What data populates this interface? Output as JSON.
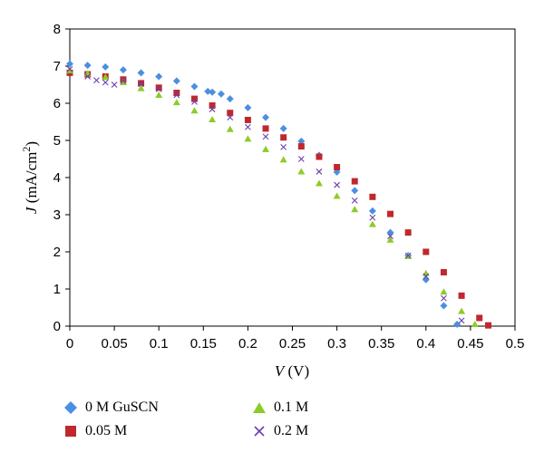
{
  "chart_data": {
    "type": "scatter",
    "xlabel": "V (V)",
    "ylabel": "J (mA/cm2)",
    "xlim": [
      0,
      0.5
    ],
    "ylim": [
      0,
      8
    ],
    "xticks": [
      "0",
      "0.05",
      "0.1",
      "0.15",
      "0.2",
      "0.25",
      "0.3",
      "0.35",
      "0.4",
      "0.45",
      "0.5"
    ],
    "yticks": [
      "0",
      "1",
      "2",
      "3",
      "4",
      "5",
      "6",
      "7",
      "8"
    ],
    "grid": false,
    "legend_position": "bottom",
    "series": [
      {
        "name": "0 M GuSCN",
        "marker": "diamond",
        "color": "#4a90e2",
        "points": [
          [
            0.0,
            7.06
          ],
          [
            0.02,
            7.02
          ],
          [
            0.04,
            6.98
          ],
          [
            0.06,
            6.9
          ],
          [
            0.08,
            6.82
          ],
          [
            0.1,
            6.72
          ],
          [
            0.12,
            6.6
          ],
          [
            0.14,
            6.45
          ],
          [
            0.155,
            6.32
          ],
          [
            0.16,
            6.3
          ],
          [
            0.17,
            6.25
          ],
          [
            0.18,
            6.12
          ],
          [
            0.2,
            5.88
          ],
          [
            0.22,
            5.62
          ],
          [
            0.24,
            5.32
          ],
          [
            0.26,
            4.98
          ],
          [
            0.28,
            4.6
          ],
          [
            0.3,
            4.15
          ],
          [
            0.32,
            3.65
          ],
          [
            0.34,
            3.1
          ],
          [
            0.36,
            2.52
          ],
          [
            0.38,
            1.9
          ],
          [
            0.4,
            1.25
          ],
          [
            0.42,
            0.55
          ],
          [
            0.435,
            0.05
          ]
        ]
      },
      {
        "name": "0.05 M",
        "marker": "square",
        "color": "#c0282d",
        "points": [
          [
            0.0,
            6.82
          ],
          [
            0.02,
            6.78
          ],
          [
            0.04,
            6.72
          ],
          [
            0.06,
            6.64
          ],
          [
            0.08,
            6.54
          ],
          [
            0.1,
            6.42
          ],
          [
            0.12,
            6.28
          ],
          [
            0.14,
            6.12
          ],
          [
            0.16,
            5.94
          ],
          [
            0.18,
            5.74
          ],
          [
            0.2,
            5.55
          ],
          [
            0.22,
            5.32
          ],
          [
            0.24,
            5.08
          ],
          [
            0.26,
            4.84
          ],
          [
            0.28,
            4.56
          ],
          [
            0.3,
            4.28
          ],
          [
            0.32,
            3.9
          ],
          [
            0.34,
            3.48
          ],
          [
            0.36,
            3.02
          ],
          [
            0.38,
            2.52
          ],
          [
            0.4,
            2.0
          ],
          [
            0.42,
            1.45
          ],
          [
            0.44,
            0.82
          ],
          [
            0.46,
            0.22
          ],
          [
            0.47,
            0.02
          ]
        ]
      },
      {
        "name": "0.1 M",
        "marker": "triangle",
        "color": "#8ccc28",
        "points": [
          [
            0.0,
            6.88
          ],
          [
            0.02,
            6.8
          ],
          [
            0.04,
            6.7
          ],
          [
            0.06,
            6.56
          ],
          [
            0.08,
            6.4
          ],
          [
            0.1,
            6.22
          ],
          [
            0.12,
            6.02
          ],
          [
            0.14,
            5.8
          ],
          [
            0.16,
            5.56
          ],
          [
            0.18,
            5.3
          ],
          [
            0.2,
            5.04
          ],
          [
            0.22,
            4.76
          ],
          [
            0.24,
            4.48
          ],
          [
            0.26,
            4.16
          ],
          [
            0.28,
            3.84
          ],
          [
            0.3,
            3.5
          ],
          [
            0.32,
            3.14
          ],
          [
            0.34,
            2.74
          ],
          [
            0.36,
            2.32
          ],
          [
            0.38,
            1.88
          ],
          [
            0.4,
            1.42
          ],
          [
            0.42,
            0.92
          ],
          [
            0.44,
            0.4
          ],
          [
            0.455,
            0.05
          ]
        ]
      },
      {
        "name": "0.2 M",
        "marker": "x",
        "color": "#6a3fae",
        "points": [
          [
            0.0,
            6.92
          ],
          [
            0.02,
            6.72
          ],
          [
            0.03,
            6.62
          ],
          [
            0.04,
            6.56
          ],
          [
            0.05,
            6.5
          ],
          [
            0.06,
            6.6
          ],
          [
            0.08,
            6.52
          ],
          [
            0.1,
            6.38
          ],
          [
            0.12,
            6.22
          ],
          [
            0.14,
            6.04
          ],
          [
            0.16,
            5.84
          ],
          [
            0.18,
            5.62
          ],
          [
            0.2,
            5.36
          ],
          [
            0.22,
            5.1
          ],
          [
            0.24,
            4.82
          ],
          [
            0.26,
            4.5
          ],
          [
            0.28,
            4.16
          ],
          [
            0.3,
            3.8
          ],
          [
            0.32,
            3.38
          ],
          [
            0.34,
            2.92
          ],
          [
            0.36,
            2.42
          ],
          [
            0.38,
            1.9
          ],
          [
            0.4,
            1.34
          ],
          [
            0.42,
            0.75
          ],
          [
            0.44,
            0.15
          ]
        ]
      }
    ]
  }
}
